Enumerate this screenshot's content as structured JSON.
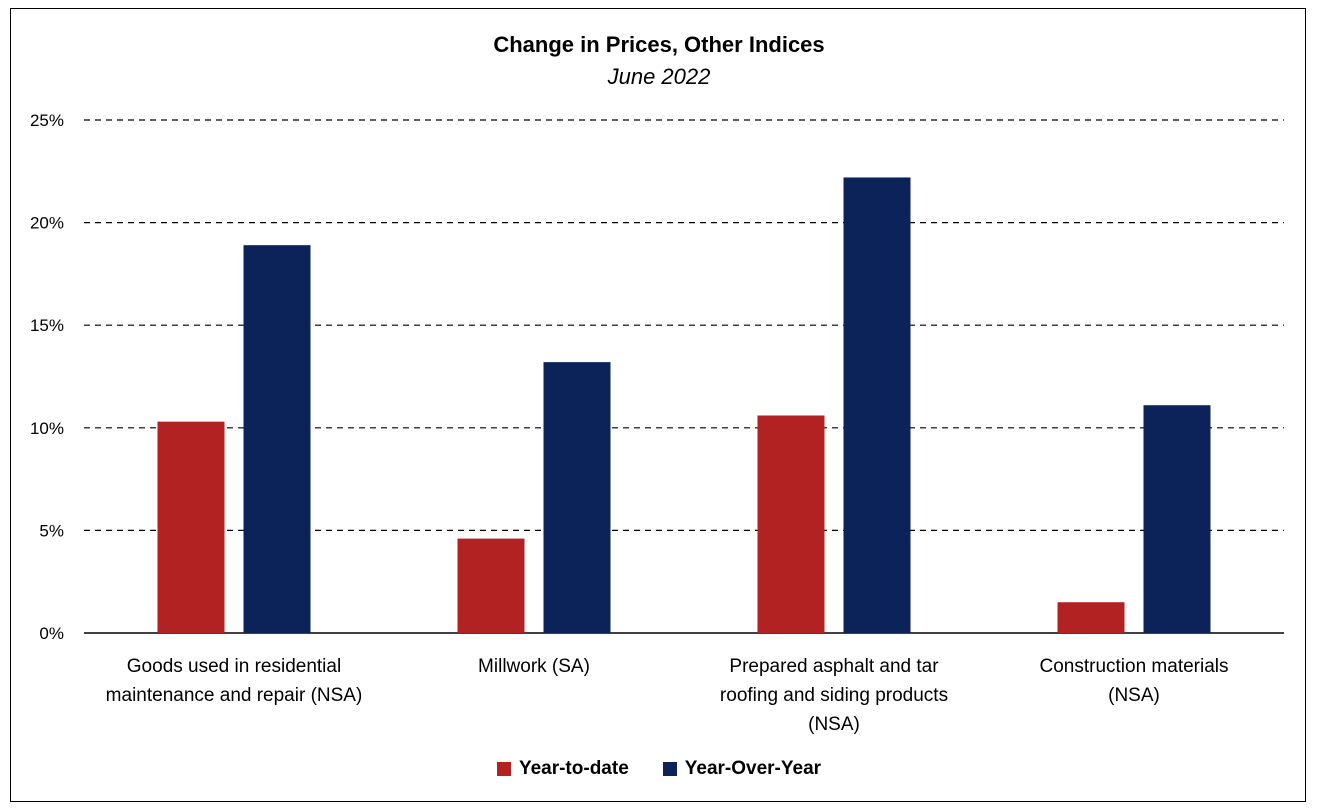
{
  "chart_data": {
    "type": "bar",
    "title": "Change in Prices, Other Indices",
    "subtitle": "June 2022",
    "categories": [
      [
        "Goods used in residential",
        "maintenance and repair (NSA)"
      ],
      [
        "Millwork (SA)"
      ],
      [
        "Prepared asphalt and tar",
        "roofing and siding products",
        "(NSA)"
      ],
      [
        "Construction materials",
        "(NSA)"
      ]
    ],
    "series": [
      {
        "name": "Year-to-date",
        "color": "#b22222",
        "values": [
          10.3,
          4.6,
          10.6,
          1.5
        ]
      },
      {
        "name": "Year-Over-Year",
        "color": "#0b2359",
        "values": [
          18.9,
          13.2,
          22.2,
          11.1
        ]
      }
    ],
    "ylim": [
      0,
      25
    ],
    "yticks": [
      0,
      5,
      10,
      15,
      20,
      25
    ],
    "ytick_labels": [
      "0%",
      "5%",
      "10%",
      "15%",
      "20%",
      "25%"
    ],
    "grid": true,
    "legend_position": "bottom"
  }
}
